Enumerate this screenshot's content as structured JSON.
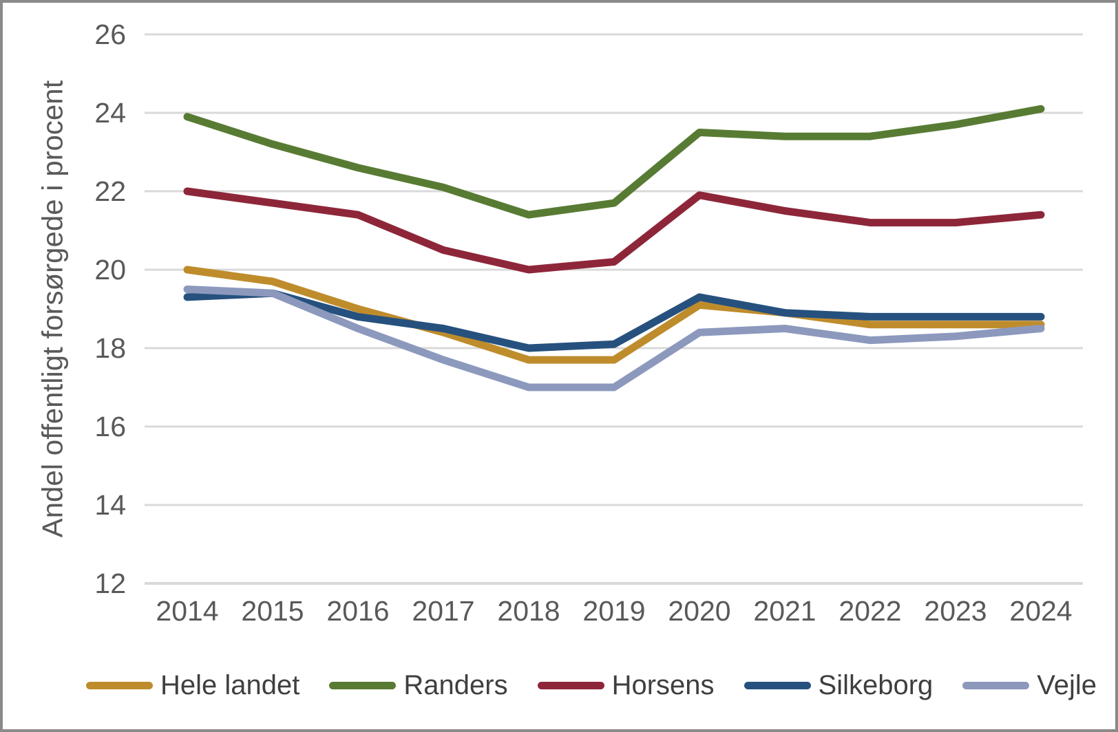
{
  "chart_data": {
    "type": "line",
    "title": "",
    "xlabel": "",
    "ylabel": "Andel offentligt forsørgede i procent",
    "categories": [
      "2014",
      "2015",
      "2016",
      "2017",
      "2018",
      "2019",
      "2020",
      "2021",
      "2022",
      "2023",
      "2024"
    ],
    "ylim": [
      12,
      26
    ],
    "yticks": [
      12,
      14,
      16,
      18,
      20,
      22,
      24,
      26
    ],
    "grid": true,
    "legend_position": "bottom",
    "series": [
      {
        "name": "Hele landet",
        "color": "#BF8C2C",
        "values": [
          20.0,
          19.7,
          19.0,
          18.4,
          17.7,
          17.7,
          19.1,
          18.9,
          18.6,
          18.6,
          18.6
        ]
      },
      {
        "name": "Randers",
        "color": "#587B34",
        "values": [
          23.9,
          23.2,
          22.6,
          22.1,
          21.4,
          21.7,
          23.5,
          23.4,
          23.4,
          23.7,
          24.1
        ]
      },
      {
        "name": "Horsens",
        "color": "#8E2639",
        "values": [
          22.0,
          21.7,
          21.4,
          20.5,
          20.0,
          20.2,
          21.9,
          21.5,
          21.2,
          21.2,
          21.4
        ]
      },
      {
        "name": "Silkeborg",
        "color": "#26517E",
        "values": [
          19.3,
          19.4,
          18.8,
          18.5,
          18.0,
          18.1,
          19.3,
          18.9,
          18.8,
          18.8,
          18.8
        ]
      },
      {
        "name": "Vejle",
        "color": "#8C99BD",
        "values": [
          19.5,
          19.4,
          18.5,
          17.7,
          17.0,
          17.0,
          18.4,
          18.5,
          18.2,
          18.3,
          18.5
        ]
      }
    ],
    "axis_text_color": "#595959",
    "gridline_color": "#D9D9D9"
  }
}
